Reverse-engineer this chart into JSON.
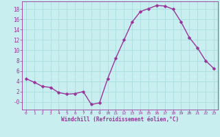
{
  "x": [
    0,
    1,
    2,
    3,
    4,
    5,
    6,
    7,
    8,
    9,
    10,
    11,
    12,
    13,
    14,
    15,
    16,
    17,
    18,
    19,
    20,
    21,
    22,
    23
  ],
  "y": [
    4.5,
    3.8,
    3.0,
    2.8,
    1.8,
    1.5,
    1.6,
    2.0,
    -0.5,
    -0.2,
    4.5,
    8.5,
    12.0,
    15.5,
    17.5,
    18.1,
    18.7,
    18.6,
    18.0,
    15.5,
    12.5,
    10.5,
    8.0,
    6.5
  ],
  "line_color": "#993399",
  "marker": "D",
  "marker_size": 2.5,
  "bg_color": "#c8eef0",
  "grid_color": "#aadddd",
  "xlabel": "Windchill (Refroidissement éolien,°C)",
  "xlabel_color": "#993399",
  "tick_color": "#993399",
  "xlim": [
    -0.5,
    23.5
  ],
  "ylim": [
    -1.5,
    19.5
  ],
  "yticks": [
    0,
    2,
    4,
    6,
    8,
    10,
    12,
    14,
    16,
    18
  ],
  "ytick_labels": [
    "-0",
    "2",
    "4",
    "6",
    "8",
    "10",
    "12",
    "14",
    "16",
    "18"
  ],
  "xticks": [
    0,
    1,
    2,
    3,
    4,
    5,
    6,
    7,
    8,
    9,
    10,
    11,
    12,
    13,
    14,
    15,
    16,
    17,
    18,
    19,
    20,
    21,
    22,
    23
  ]
}
